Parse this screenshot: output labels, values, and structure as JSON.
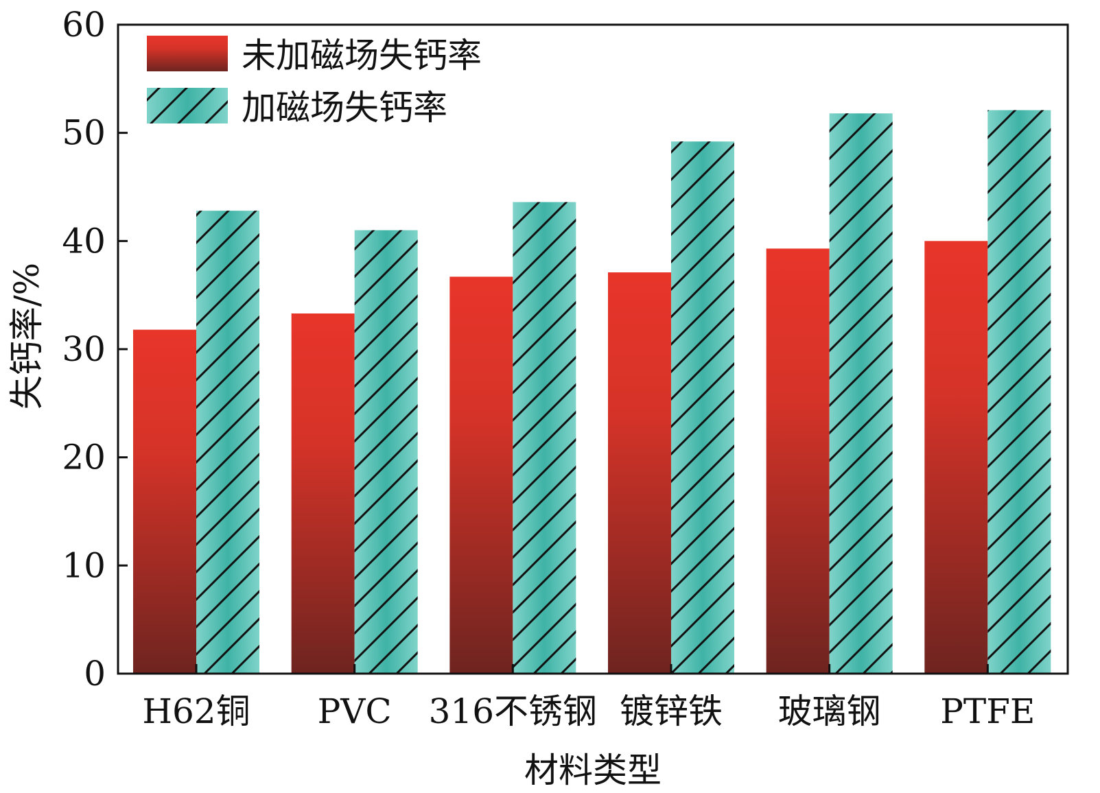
{
  "chart_data": {
    "type": "bar",
    "title": "",
    "xlabel": "材料类型",
    "ylabel": "失钙率/%",
    "ylim": [
      0,
      60
    ],
    "yticks": [
      0,
      10,
      20,
      30,
      40,
      50,
      60
    ],
    "grid": false,
    "legend_position": "top-left",
    "categories": [
      "H62铜",
      "PVC",
      "316不锈钢",
      "镀锌铁",
      "玻璃钢",
      "PTFE"
    ],
    "series": [
      {
        "name": "未加磁场失钙率",
        "values": [
          31.8,
          33.3,
          36.7,
          37.1,
          39.3,
          40.0
        ],
        "color_top": "#e8352a",
        "color_bottom": "#6e2420",
        "pattern": "solid"
      },
      {
        "name": "加磁场失钙率",
        "values": [
          42.8,
          41.0,
          43.6,
          49.2,
          51.8,
          52.1
        ],
        "color": "#4dbdb0",
        "pattern": "diagonal-hatch"
      }
    ]
  }
}
